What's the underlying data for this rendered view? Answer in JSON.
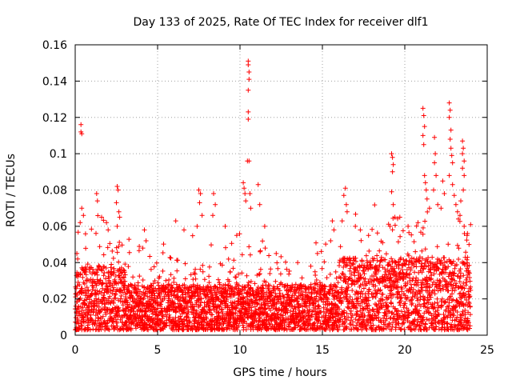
{
  "chart_data": {
    "type": "scatter",
    "title": "Day 133 of 2025, Rate Of TEC Index for receiver dlf1",
    "xlabel": "GPS time / hours",
    "ylabel": "ROTI / TECUs",
    "xlim": [
      0,
      25
    ],
    "ylim": [
      0,
      0.16
    ],
    "x_ticks": [
      0,
      5,
      10,
      15,
      20,
      25
    ],
    "x_tick_labels": [
      "0",
      "5",
      "10",
      "15",
      "20",
      "25"
    ],
    "y_ticks": [
      0,
      0.02,
      0.04,
      0.06,
      0.08,
      0.1,
      0.12,
      0.14,
      0.16
    ],
    "y_tick_labels": [
      "0",
      "0.02",
      "0.04",
      "0.06",
      "0.08",
      "0.1",
      "0.12",
      "0.14",
      "0.16"
    ],
    "grid": true,
    "marker": "plus",
    "marker_color": "#ff0000",
    "series": [
      {
        "name": "ROTI",
        "sampling": {
          "x_start": 0,
          "x_end": 24,
          "x_step": 0.0095,
          "base_range": [
            0.005,
            0.028
          ],
          "spread_range": [
            0.003,
            0.06
          ],
          "elevated_windows": [
            {
              "x": [
                16,
                24
              ],
              "extra_upper": 0.015
            },
            {
              "x": [
                0,
                3
              ],
              "extra_upper": 0.01
            }
          ]
        },
        "notable_points": [
          {
            "x": 0.35,
            "y": 0.116
          },
          {
            "x": 0.35,
            "y": 0.112
          },
          {
            "x": 0.4,
            "y": 0.111
          },
          {
            "x": 0.4,
            "y": 0.07
          },
          {
            "x": 0.5,
            "y": 0.066
          },
          {
            "x": 0.3,
            "y": 0.062
          },
          {
            "x": 0.1,
            "y": 0.045
          },
          {
            "x": 0.15,
            "y": 0.042
          },
          {
            "x": 1.3,
            "y": 0.078
          },
          {
            "x": 1.35,
            "y": 0.074
          },
          {
            "x": 1.6,
            "y": 0.065
          },
          {
            "x": 1.9,
            "y": 0.062
          },
          {
            "x": 2.0,
            "y": 0.058
          },
          {
            "x": 2.55,
            "y": 0.082
          },
          {
            "x": 2.6,
            "y": 0.08
          },
          {
            "x": 2.5,
            "y": 0.073
          },
          {
            "x": 2.65,
            "y": 0.068
          },
          {
            "x": 2.7,
            "y": 0.065
          },
          {
            "x": 2.55,
            "y": 0.06
          },
          {
            "x": 4.2,
            "y": 0.058
          },
          {
            "x": 4.3,
            "y": 0.052
          },
          {
            "x": 4.1,
            "y": 0.048
          },
          {
            "x": 6.1,
            "y": 0.063
          },
          {
            "x": 6.6,
            "y": 0.058
          },
          {
            "x": 7.5,
            "y": 0.08
          },
          {
            "x": 7.6,
            "y": 0.078
          },
          {
            "x": 7.55,
            "y": 0.073
          },
          {
            "x": 7.7,
            "y": 0.066
          },
          {
            "x": 7.4,
            "y": 0.06
          },
          {
            "x": 8.4,
            "y": 0.078
          },
          {
            "x": 8.5,
            "y": 0.072
          },
          {
            "x": 8.35,
            "y": 0.066
          },
          {
            "x": 9.1,
            "y": 0.06
          },
          {
            "x": 9.8,
            "y": 0.055
          },
          {
            "x": 10.2,
            "y": 0.084
          },
          {
            "x": 10.25,
            "y": 0.081
          },
          {
            "x": 10.3,
            "y": 0.078
          },
          {
            "x": 10.35,
            "y": 0.074
          },
          {
            "x": 10.5,
            "y": 0.151
          },
          {
            "x": 10.5,
            "y": 0.149
          },
          {
            "x": 10.55,
            "y": 0.145
          },
          {
            "x": 10.55,
            "y": 0.141
          },
          {
            "x": 10.5,
            "y": 0.135
          },
          {
            "x": 10.5,
            "y": 0.123
          },
          {
            "x": 10.5,
            "y": 0.119
          },
          {
            "x": 10.55,
            "y": 0.096
          },
          {
            "x": 10.45,
            "y": 0.096
          },
          {
            "x": 10.6,
            "y": 0.078
          },
          {
            "x": 10.65,
            "y": 0.07
          },
          {
            "x": 11.1,
            "y": 0.083
          },
          {
            "x": 11.2,
            "y": 0.072
          },
          {
            "x": 11.5,
            "y": 0.06
          },
          {
            "x": 12.2,
            "y": 0.045
          },
          {
            "x": 13.5,
            "y": 0.04
          },
          {
            "x": 14.7,
            "y": 0.045
          },
          {
            "x": 15.6,
            "y": 0.063
          },
          {
            "x": 15.7,
            "y": 0.058
          },
          {
            "x": 15.5,
            "y": 0.052
          },
          {
            "x": 16.4,
            "y": 0.081
          },
          {
            "x": 16.3,
            "y": 0.077
          },
          {
            "x": 16.45,
            "y": 0.072
          },
          {
            "x": 16.5,
            "y": 0.068
          },
          {
            "x": 16.2,
            "y": 0.063
          },
          {
            "x": 17.0,
            "y": 0.06
          },
          {
            "x": 17.3,
            "y": 0.058
          },
          {
            "x": 17.8,
            "y": 0.055
          },
          {
            "x": 19.2,
            "y": 0.1
          },
          {
            "x": 19.25,
            "y": 0.098
          },
          {
            "x": 19.3,
            "y": 0.094
          },
          {
            "x": 19.25,
            "y": 0.09
          },
          {
            "x": 19.2,
            "y": 0.079
          },
          {
            "x": 19.3,
            "y": 0.072
          },
          {
            "x": 19.4,
            "y": 0.065
          },
          {
            "x": 19.1,
            "y": 0.06
          },
          {
            "x": 19.7,
            "y": 0.065
          },
          {
            "x": 20.2,
            "y": 0.06
          },
          {
            "x": 20.8,
            "y": 0.062
          },
          {
            "x": 21.1,
            "y": 0.125
          },
          {
            "x": 21.15,
            "y": 0.121
          },
          {
            "x": 21.2,
            "y": 0.115
          },
          {
            "x": 21.1,
            "y": 0.11
          },
          {
            "x": 21.15,
            "y": 0.105
          },
          {
            "x": 21.2,
            "y": 0.088
          },
          {
            "x": 21.25,
            "y": 0.084
          },
          {
            "x": 21.3,
            "y": 0.08
          },
          {
            "x": 21.35,
            "y": 0.075
          },
          {
            "x": 21.5,
            "y": 0.07
          },
          {
            "x": 21.8,
            "y": 0.109
          },
          {
            "x": 21.85,
            "y": 0.1
          },
          {
            "x": 21.8,
            "y": 0.095
          },
          {
            "x": 21.9,
            "y": 0.088
          },
          {
            "x": 21.75,
            "y": 0.08
          },
          {
            "x": 22.0,
            "y": 0.072
          },
          {
            "x": 22.3,
            "y": 0.085
          },
          {
            "x": 22.4,
            "y": 0.078
          },
          {
            "x": 22.2,
            "y": 0.07
          },
          {
            "x": 22.7,
            "y": 0.128
          },
          {
            "x": 22.75,
            "y": 0.124
          },
          {
            "x": 22.7,
            "y": 0.12
          },
          {
            "x": 22.8,
            "y": 0.113
          },
          {
            "x": 22.75,
            "y": 0.108
          },
          {
            "x": 22.8,
            "y": 0.103
          },
          {
            "x": 22.85,
            "y": 0.099
          },
          {
            "x": 22.9,
            "y": 0.095
          },
          {
            "x": 22.7,
            "y": 0.088
          },
          {
            "x": 22.9,
            "y": 0.083
          },
          {
            "x": 23.0,
            "y": 0.077
          },
          {
            "x": 23.1,
            "y": 0.072
          },
          {
            "x": 23.2,
            "y": 0.068
          },
          {
            "x": 23.25,
            "y": 0.064
          },
          {
            "x": 23.5,
            "y": 0.107
          },
          {
            "x": 23.55,
            "y": 0.103
          },
          {
            "x": 23.5,
            "y": 0.1
          },
          {
            "x": 23.6,
            "y": 0.096
          },
          {
            "x": 23.5,
            "y": 0.092
          },
          {
            "x": 23.6,
            "y": 0.088
          },
          {
            "x": 23.55,
            "y": 0.08
          },
          {
            "x": 23.4,
            "y": 0.074
          },
          {
            "x": 23.35,
            "y": 0.066
          },
          {
            "x": 23.6,
            "y": 0.06
          },
          {
            "x": 23.8,
            "y": 0.056
          },
          {
            "x": 23.9,
            "y": 0.05
          }
        ]
      }
    ]
  }
}
